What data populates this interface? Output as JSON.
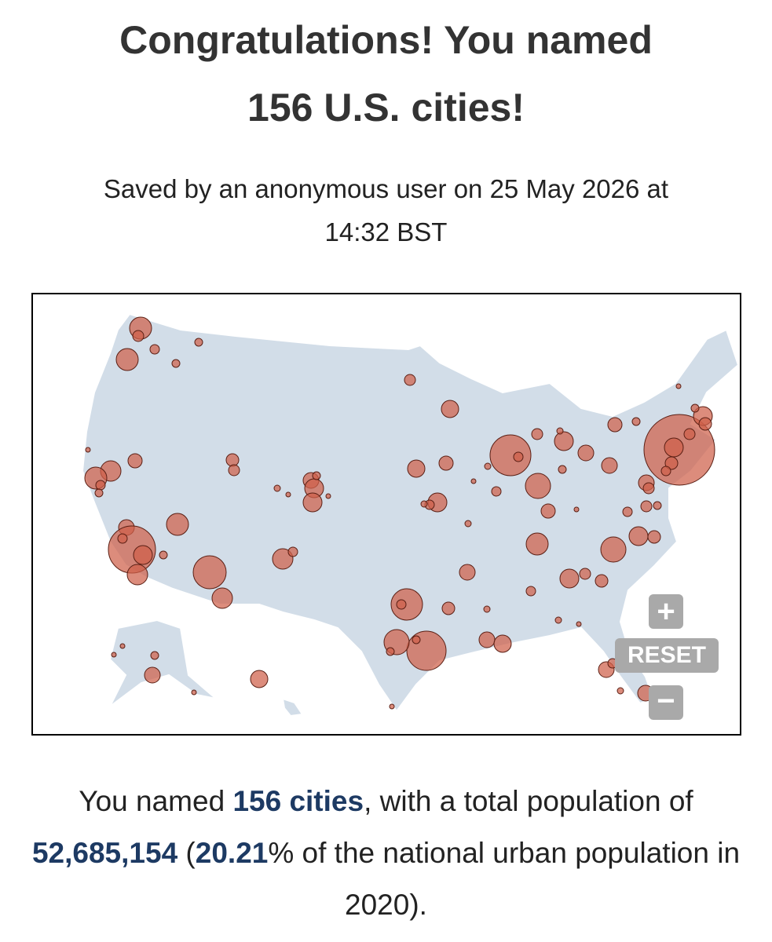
{
  "header": {
    "title_line1": "Congratulations! You named",
    "title_line2": "156 U.S. cities!",
    "subtitle_line1": "Saved by an anonymous user on 25 May 2026 at",
    "subtitle_line2": "14:32 BST"
  },
  "map_controls": {
    "reset": "RESET"
  },
  "summary": {
    "parts": [
      "You named ",
      "156 cities",
      ", with a total population of ",
      "52,685,154",
      " (",
      "20.21",
      "% of the national urban population in 2020)."
    ]
  }
}
